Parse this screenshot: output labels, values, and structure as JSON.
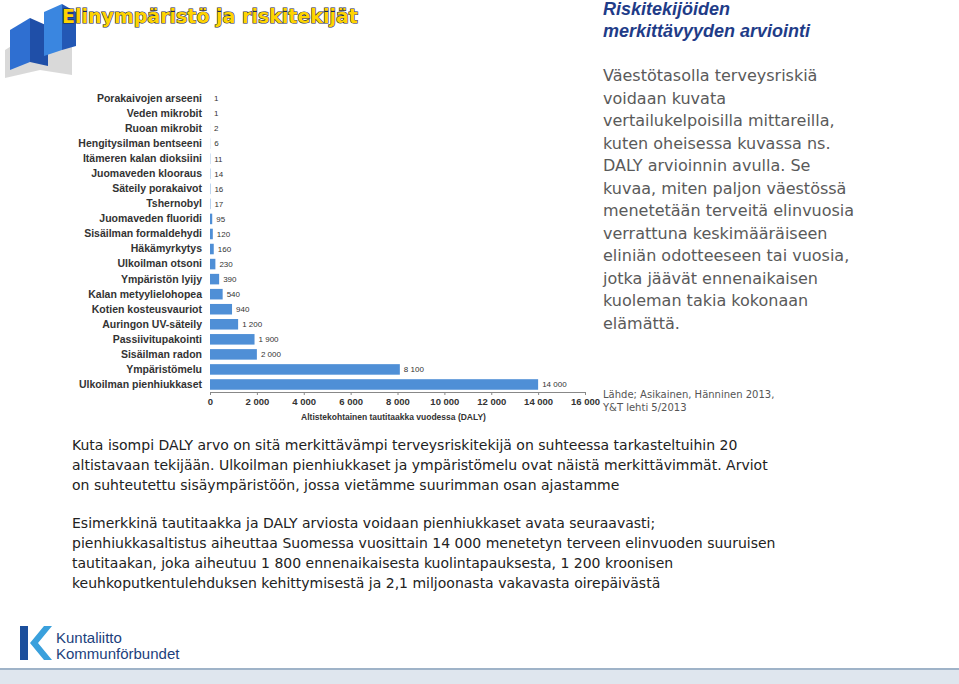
{
  "chart_data": {
    "type": "bar",
    "orientation": "horizontal",
    "x_label": "Altistekohtainen tautitaakka vuodessa (DALY)",
    "categories": [
      "Porakaivojen arseeni",
      "Veden mikrobit",
      "Ruoan mikrobit",
      "Hengitysilman bentseeni",
      "Itämeren kalan dioksiini",
      "Juomaveden klooraus",
      "Säteily porakaivot",
      "Tshernobyl",
      "Juomaveden fluoridi",
      "Sisäilman formaldehydi",
      "Häkämyrkytys",
      "Ulkoilman otsoni",
      "Ympäristön lyijy",
      "Kalan metyylielohopea",
      "Kotien kosteusvauriot",
      "Auringon UV-säteily",
      "Passiivitupakointi",
      "Sisäilman radon",
      "Ympäristömelu",
      "Ulkoilman pienhiukkaset"
    ],
    "values": [
      1,
      1,
      2,
      6,
      11,
      14,
      16,
      17,
      95,
      120,
      160,
      230,
      390,
      540,
      940,
      1200,
      1900,
      2000,
      8100,
      14000
    ],
    "value_labels": [
      "1",
      "1",
      "2",
      "6",
      "11",
      "14",
      "16",
      "17",
      "95",
      "120",
      "160",
      "230",
      "390",
      "540",
      "940",
      "1 200",
      "1 900",
      "2 000",
      "8 100",
      "14 000"
    ],
    "data_labels": true,
    "color": "#4f8fd6",
    "xlim": [
      0,
      16000
    ],
    "xticks": [
      0,
      {
        "value": 2000,
        "label": "2 000"
      },
      {
        "value": 4000,
        "label": "4 000"
      },
      {
        "value": 6000,
        "label": "6 000"
      },
      {
        "value": 8000,
        "label": "8 000"
      },
      {
        "value": 10000,
        "label": "10 000"
      },
      {
        "value": 12000,
        "label": "12 000"
      },
      {
        "value": 14000,
        "label": "14 000"
      },
      {
        "value": 16000,
        "label": "16 000"
      }
    ]
  },
  "slide": {
    "title": "Elinympäristö ja riskitekijät",
    "heading": [
      "Riskitekijöiden",
      "merkittävyyden arviointi"
    ],
    "intro": [
      "Väestötasolla terveysriskiä",
      "voidaan kuvata",
      "vertailukelpoisilla mittareilla,",
      "kuten oheisessa kuvassa ns.",
      "DALY arvioinnin avulla. Se",
      "kuvaa, miten paljon väestössä",
      "menetetään terveitä elinvuosia",
      "verrattuna keskimääräiseen",
      "eliniän odotteeseen tai vuosia,",
      "jotka jäävät ennenaikaisen",
      "kuoleman takia kokonaan",
      "elämättä."
    ],
    "source": [
      "Lähde; Asikainen, Hänninen 2013,",
      "Y&T lehti 5/2013"
    ],
    "body": [
      [
        "Kuta isompi DALY arvo on sitä merkittävämpi terveysriskitekijä on suhteessa tarkasteltuihin 20",
        "altistavaan tekijään. Ulkoilman pienhiukkaset ja ympäristömelu ovat näistä merkittävimmät.  Arviot",
        "on suhteutettu sisäympäristöön, jossa vietämme suurimman osan ajastamme"
      ],
      [
        "Esimerkkinä tautitaakka ja DALY arviosta voidaan pienhiukkaset avata seuraavasti;",
        "pienhiukkasaltistus aiheuttaa Suomessa vuosittain 14 000 menetetyn terveen elinvuoden suuruisen",
        "tautitaakan, joka aiheutuu 1 800 ennenaikaisesta kuolintapauksesta, 1 200 kroonisen",
        "keuhkoputkentulehduksen kehittymisestä ja 2,1 miljoonasta vakavasta oirepäivästä"
      ]
    ],
    "logo": [
      "Kuntaliitto",
      "Kommunförbundet"
    ]
  }
}
